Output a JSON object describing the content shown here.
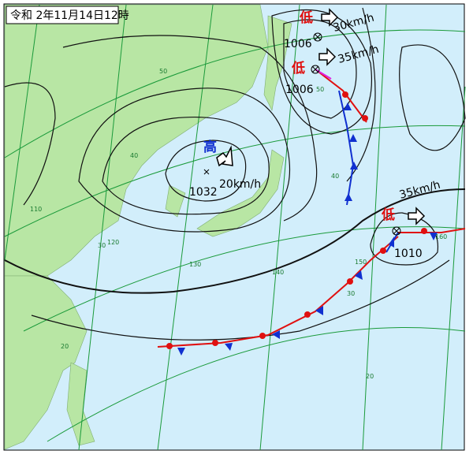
{
  "title": "令和 2年11月14日12時",
  "systems": [
    {
      "kind": "低",
      "pressure": "1006",
      "speed": "30km/h"
    },
    {
      "kind": "低",
      "pressure": "1006",
      "speed": "35km/h"
    },
    {
      "kind": "高",
      "pressure": "1032",
      "speed": "20km/h"
    },
    {
      "kind": "低",
      "pressure": "1010",
      "speed": "35km/h"
    }
  ],
  "grid_labels": [
    "50",
    "40",
    "30",
    "20",
    "110",
    "120",
    "130",
    "140",
    "150",
    "160",
    "50",
    "40",
    "30",
    "20"
  ]
}
